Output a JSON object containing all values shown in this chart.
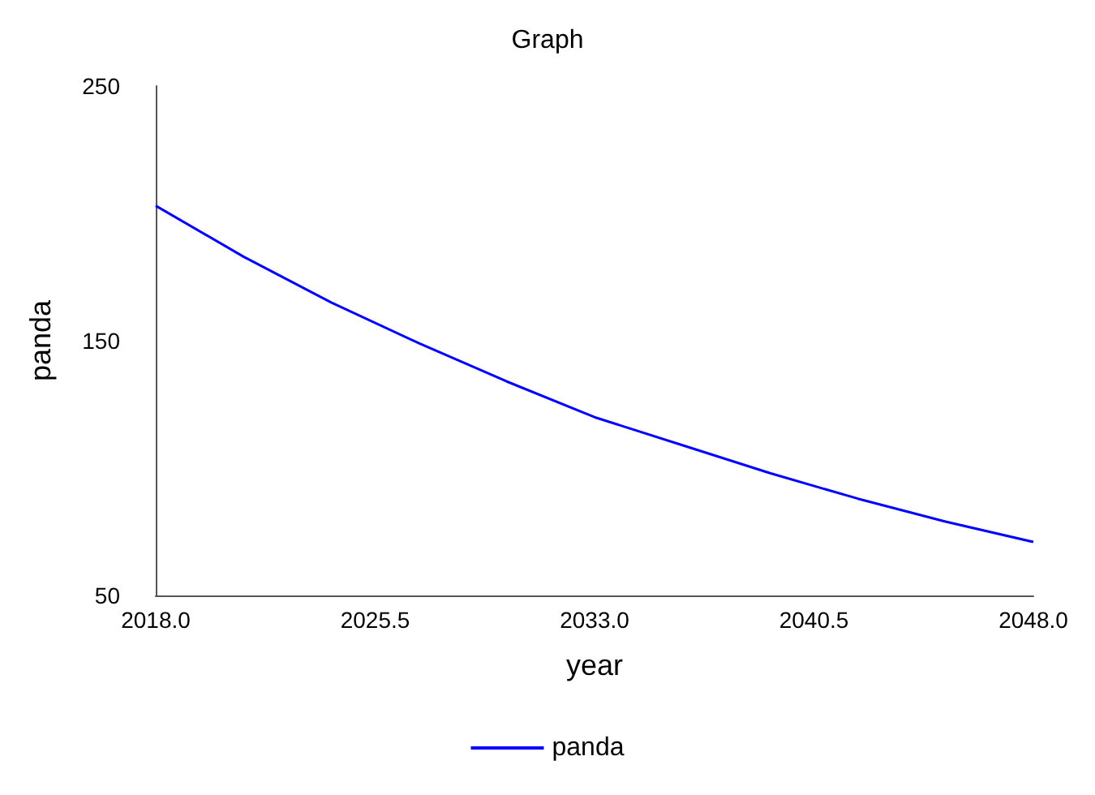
{
  "chart_data": {
    "type": "line",
    "title": "Graph",
    "xlabel": "year",
    "ylabel": "panda",
    "x": [
      2018,
      2021,
      2024,
      2027,
      2030,
      2033,
      2036,
      2039,
      2042,
      2045,
      2048
    ],
    "series": [
      {
        "name": "panda",
        "color": "#0000ff",
        "values": [
          203,
          183,
          165,
          149,
          134,
          120,
          109,
          98,
          88,
          79,
          71
        ]
      }
    ],
    "xlim": [
      2018,
      2048
    ],
    "xticks": [
      {
        "value": 2018,
        "label": "2018.0"
      },
      {
        "value": 2025.5,
        "label": "2025.5"
      },
      {
        "value": 2033,
        "label": "2033.0"
      },
      {
        "value": 2040.5,
        "label": "2040.5"
      },
      {
        "value": 2048,
        "label": "2048.0"
      }
    ],
    "ylim": [
      50,
      250
    ],
    "yticks": [
      50,
      150,
      250
    ],
    "grid": false,
    "legend": "bottom",
    "marker": "none",
    "line_style": "solid"
  }
}
